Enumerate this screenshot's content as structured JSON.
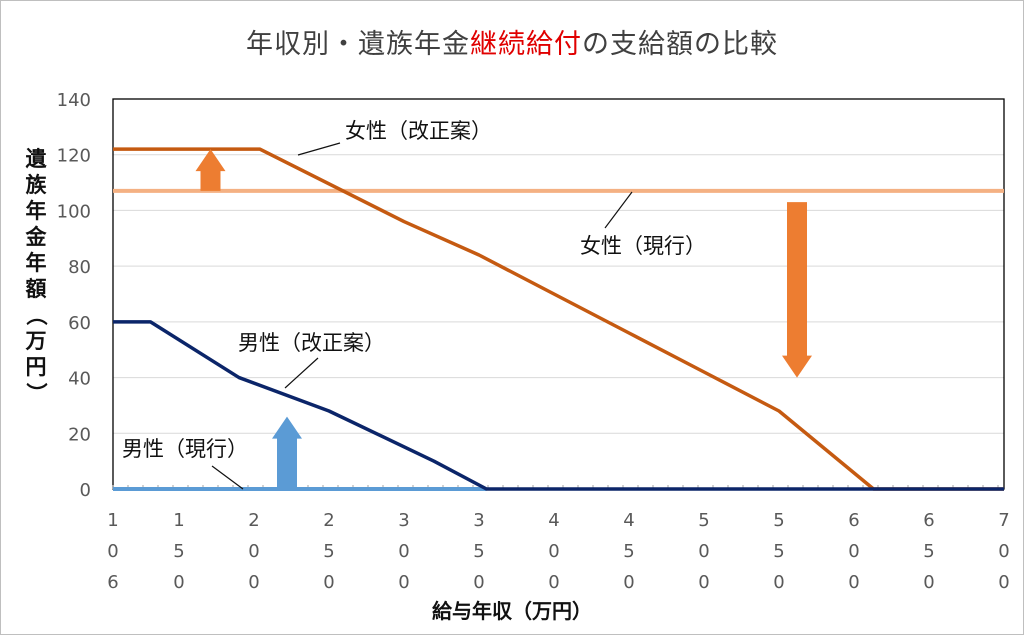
{
  "title": {
    "prefix": "年収別・遺族年金",
    "highlight": "継続給付",
    "suffix": "の支給額の比較",
    "highlight_color": "#e00000"
  },
  "chart_data": {
    "type": "line",
    "ylabel": [
      "遺",
      "族",
      "年",
      "金",
      "年",
      "額",
      "（",
      "万",
      "円",
      "）"
    ],
    "xlabel": "給与年収（万円）",
    "ylim": [
      0,
      140
    ],
    "yticks": [
      0,
      20,
      40,
      60,
      80,
      100,
      120,
      140
    ],
    "xlim": [
      106,
      700
    ],
    "xticks": [
      {
        "value": 106,
        "label": [
          "1",
          "0",
          "6"
        ]
      },
      {
        "value": 150,
        "label": [
          "1",
          "5",
          "0"
        ]
      },
      {
        "value": 200,
        "label": [
          "2",
          "0",
          "0"
        ]
      },
      {
        "value": 250,
        "label": [
          "2",
          "5",
          "0"
        ]
      },
      {
        "value": 300,
        "label": [
          "3",
          "0",
          "0"
        ]
      },
      {
        "value": 350,
        "label": [
          "3",
          "5",
          "0"
        ]
      },
      {
        "value": 400,
        "label": [
          "4",
          "0",
          "0"
        ]
      },
      {
        "value": 450,
        "label": [
          "4",
          "5",
          "0"
        ]
      },
      {
        "value": 500,
        "label": [
          "5",
          "0",
          "0"
        ]
      },
      {
        "value": 550,
        "label": [
          "5",
          "5",
          "0"
        ]
      },
      {
        "value": 600,
        "label": [
          "6",
          "0",
          "0"
        ]
      },
      {
        "value": 650,
        "label": [
          "6",
          "5",
          "0"
        ]
      },
      {
        "value": 700,
        "label": [
          "7",
          "0",
          "0"
        ]
      }
    ],
    "grid": true,
    "series": [
      {
        "name": "女性（改正案）",
        "color": "#c55a11",
        "x": [
          106,
          204,
          300,
          350,
          400,
          450,
          500,
          550,
          613,
          700
        ],
        "y": [
          122,
          122,
          96,
          84,
          70,
          56,
          42,
          28,
          0,
          0
        ]
      },
      {
        "name": "女性（現行）",
        "color": "#f4b183",
        "x": [
          106,
          700
        ],
        "y": [
          107,
          107
        ]
      },
      {
        "name": "男性（改正案）",
        "color": "#0b2569",
        "x": [
          106,
          131,
          190,
          250,
          320,
          355,
          700
        ],
        "y": [
          60,
          60,
          40,
          28,
          10,
          0,
          0
        ]
      },
      {
        "name": "男性（現行）",
        "color": "#5b9bd5",
        "x": [
          106,
          355
        ],
        "y": [
          0,
          0
        ]
      }
    ],
    "arrows": [
      {
        "direction": "up",
        "x": 171,
        "from": 107,
        "to": 122,
        "color": "#ed7d31"
      },
      {
        "direction": "down",
        "x": 562,
        "from": 103,
        "to": 40,
        "color": "#ed7d31"
      },
      {
        "direction": "up",
        "x": 222,
        "from": 0,
        "to": 26,
        "color": "#5b9bd5"
      }
    ]
  }
}
